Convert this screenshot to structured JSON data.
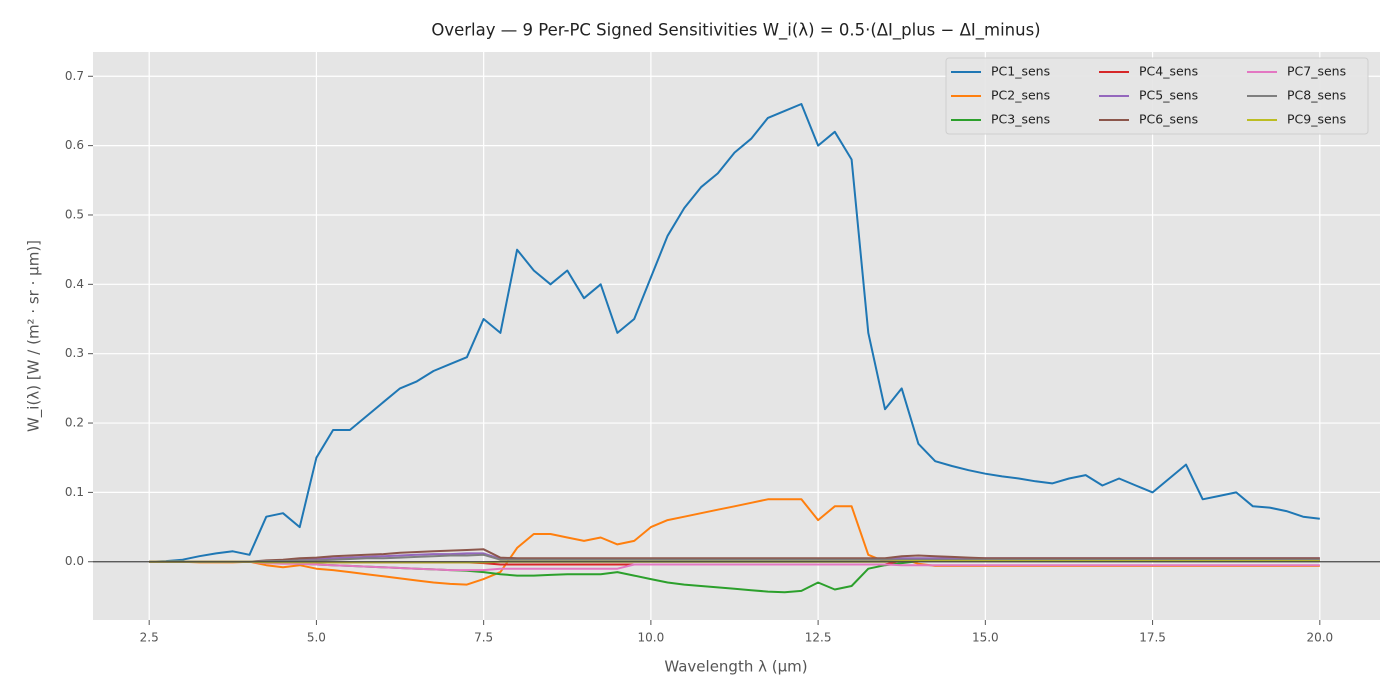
{
  "chart_data": {
    "type": "line",
    "title": "Overlay — 9 Per-PC Signed Sensitivities W_i(λ) = 0.5·(ΔI_plus − ΔI_minus)",
    "x_label": "Wavelength λ (µm)",
    "y_label": "W_i(λ) [W / (m² · sr · µm)]",
    "x": [
      2.5,
      2.75,
      3.0,
      3.25,
      3.5,
      3.75,
      4.0,
      4.25,
      4.5,
      4.75,
      5.0,
      5.25,
      5.5,
      5.75,
      6.0,
      6.25,
      6.5,
      6.75,
      7.0,
      7.25,
      7.5,
      7.75,
      8.0,
      8.25,
      8.5,
      8.75,
      9.0,
      9.25,
      9.5,
      9.75,
      10.0,
      10.25,
      10.5,
      10.75,
      11.0,
      11.25,
      11.5,
      11.75,
      12.0,
      12.25,
      12.5,
      12.75,
      13.0,
      13.25,
      13.5,
      13.75,
      14.0,
      14.25,
      14.5,
      14.75,
      15.0,
      15.25,
      15.5,
      15.75,
      16.0,
      16.25,
      16.5,
      16.75,
      17.0,
      17.25,
      17.5,
      17.75,
      18.0,
      18.25,
      18.5,
      18.75,
      19.0,
      19.25,
      19.5,
      19.75,
      20.0
    ],
    "series": [
      {
        "name": "PC1_sens",
        "color": "#1f77b4",
        "values": [
          0,
          0.001,
          0.003,
          0.008,
          0.012,
          0.015,
          0.01,
          0.065,
          0.07,
          0.05,
          0.15,
          0.19,
          0.19,
          0.21,
          0.23,
          0.25,
          0.26,
          0.275,
          0.285,
          0.295,
          0.35,
          0.33,
          0.45,
          0.42,
          0.4,
          0.42,
          0.38,
          0.4,
          0.33,
          0.35,
          0.41,
          0.47,
          0.51,
          0.54,
          0.56,
          0.59,
          0.61,
          0.64,
          0.65,
          0.66,
          0.6,
          0.62,
          0.58,
          0.33,
          0.22,
          0.25,
          0.17,
          0.145,
          0.138,
          0.132,
          0.127,
          0.123,
          0.12,
          0.116,
          0.113,
          0.12,
          0.125,
          0.11,
          0.12,
          0.11,
          0.1,
          0.12,
          0.14,
          0.09,
          0.095,
          0.1,
          0.08,
          0.078,
          0.073,
          0.065,
          0.062
        ]
      },
      {
        "name": "PC2_sens",
        "color": "#ff7f0e",
        "values": [
          0,
          0,
          0,
          -0.001,
          -0.001,
          -0.001,
          0,
          -0.005,
          -0.008,
          -0.005,
          -0.01,
          -0.012,
          -0.015,
          -0.018,
          -0.021,
          -0.024,
          -0.027,
          -0.03,
          -0.032,
          -0.033,
          -0.025,
          -0.015,
          0.02,
          0.04,
          0.04,
          0.035,
          0.03,
          0.035,
          0.025,
          0.03,
          0.05,
          0.06,
          0.065,
          0.07,
          0.075,
          0.08,
          0.085,
          0.09,
          0.09,
          0.09,
          0.06,
          0.08,
          0.08,
          0.01,
          0,
          0.005,
          -0.003,
          -0.006,
          -0.006,
          -0.006,
          -0.006,
          -0.006,
          -0.006,
          -0.006,
          -0.006,
          -0.006,
          -0.006,
          -0.006,
          -0.006,
          -0.006,
          -0.006,
          -0.006,
          -0.006,
          -0.006,
          -0.006,
          -0.006,
          -0.006,
          -0.006,
          -0.006,
          -0.006,
          -0.006
        ]
      },
      {
        "name": "PC3_sens",
        "color": "#2ca02c",
        "values": [
          0,
          0,
          0,
          0,
          0,
          0,
          0,
          -0.001,
          -0.002,
          -0.003,
          -0.004,
          -0.005,
          -0.006,
          -0.007,
          -0.008,
          -0.009,
          -0.01,
          -0.011,
          -0.012,
          -0.013,
          -0.015,
          -0.018,
          -0.02,
          -0.02,
          -0.019,
          -0.018,
          -0.018,
          -0.018,
          -0.015,
          -0.02,
          -0.025,
          -0.03,
          -0.033,
          -0.035,
          -0.037,
          -0.039,
          -0.041,
          -0.043,
          -0.044,
          -0.042,
          -0.03,
          -0.04,
          -0.035,
          -0.01,
          -0.005,
          -0.002,
          0.001,
          0.001,
          0.001,
          0.001,
          0.001,
          0.001,
          0.001,
          0.001,
          0.001,
          0.001,
          0.001,
          0.001,
          0.001,
          0.001,
          0.001,
          0.001,
          0.001,
          0.001,
          0.001,
          0.001,
          0.001,
          0.001,
          0.001,
          0.001,
          0.001
        ]
      },
      {
        "name": "PC4_sens",
        "color": "#d62728",
        "values": [
          0,
          0,
          0,
          0,
          0,
          0,
          0,
          -0.001,
          -0.001,
          -0.001,
          -0.001,
          -0.001,
          -0.001,
          -0.001,
          -0.001,
          -0.001,
          -0.001,
          -0.001,
          -0.001,
          -0.001,
          -0.002,
          -0.004,
          -0.004,
          -0.004,
          -0.004,
          -0.004,
          -0.004,
          -0.004,
          -0.004,
          -0.004,
          -0.004,
          -0.004,
          -0.004,
          -0.004,
          -0.004,
          -0.004,
          -0.004,
          -0.004,
          -0.004,
          -0.004,
          -0.004,
          -0.004,
          -0.004,
          -0.004,
          -0.004,
          0.002,
          0.002,
          0.002,
          0.002,
          0.002,
          0.002,
          0.002,
          0.002,
          0.002,
          0.002,
          0.002,
          0.002,
          0.002,
          0.002,
          0.002,
          0.002,
          0.002,
          0.002,
          0.002,
          0.002,
          0.002,
          0.002,
          0.002,
          0.002,
          0.002,
          0.002
        ]
      },
      {
        "name": "PC5_sens",
        "color": "#9467bd",
        "values": [
          0,
          0,
          0,
          0,
          0,
          0,
          0,
          0.001,
          0.002,
          0.003,
          0.004,
          0.005,
          0.006,
          0.007,
          0.008,
          0.009,
          0.01,
          0.011,
          0.011,
          0.012,
          0.012,
          0.004,
          0.004,
          0.004,
          0.004,
          0.004,
          0.004,
          0.004,
          0.004,
          0.004,
          0.004,
          0.004,
          0.004,
          0.004,
          0.004,
          0.004,
          0.004,
          0.004,
          0.004,
          0.004,
          0.004,
          0.004,
          0.004,
          0.004,
          0.004,
          0.005,
          0.005,
          0.005,
          0.005,
          0.005,
          0.005,
          0.005,
          0.005,
          0.005,
          0.005,
          0.005,
          0.005,
          0.005,
          0.005,
          0.005,
          0.005,
          0.005,
          0.005,
          0.005,
          0.005,
          0.005,
          0.005,
          0.005,
          0.005,
          0.005,
          0.005
        ]
      },
      {
        "name": "PC6_sens",
        "color": "#8c564b",
        "values": [
          0,
          0,
          0,
          0,
          0,
          0,
          0,
          0.002,
          0.003,
          0.005,
          0.006,
          0.008,
          0.009,
          0.01,
          0.011,
          0.013,
          0.014,
          0.015,
          0.016,
          0.017,
          0.018,
          0.006,
          0.005,
          0.005,
          0.005,
          0.005,
          0.005,
          0.005,
          0.005,
          0.005,
          0.005,
          0.005,
          0.005,
          0.005,
          0.005,
          0.005,
          0.005,
          0.005,
          0.005,
          0.005,
          0.005,
          0.005,
          0.005,
          0.005,
          0.005,
          0.008,
          0.009,
          0.008,
          0.007,
          0.006,
          0.005,
          0.005,
          0.005,
          0.005,
          0.005,
          0.005,
          0.005,
          0.005,
          0.005,
          0.005,
          0.005,
          0.005,
          0.005,
          0.005,
          0.005,
          0.005,
          0.005,
          0.005,
          0.005,
          0.005,
          0.005
        ]
      },
      {
        "name": "PC7_sens",
        "color": "#e377c2",
        "values": [
          0,
          0,
          0,
          0,
          0,
          0,
          0,
          -0.002,
          -0.003,
          -0.003,
          -0.004,
          -0.005,
          -0.006,
          -0.007,
          -0.008,
          -0.009,
          -0.01,
          -0.011,
          -0.012,
          -0.012,
          -0.012,
          -0.01,
          -0.01,
          -0.01,
          -0.01,
          -0.01,
          -0.01,
          -0.01,
          -0.01,
          -0.004,
          -0.004,
          -0.004,
          -0.004,
          -0.004,
          -0.004,
          -0.004,
          -0.004,
          -0.004,
          -0.004,
          -0.004,
          -0.004,
          -0.004,
          -0.004,
          -0.004,
          -0.004,
          -0.005,
          -0.005,
          -0.005,
          -0.005,
          -0.005,
          -0.005,
          -0.005,
          -0.005,
          -0.005,
          -0.005,
          -0.005,
          -0.005,
          -0.005,
          -0.005,
          -0.005,
          -0.005,
          -0.005,
          -0.005,
          -0.005,
          -0.005,
          -0.005,
          -0.005,
          -0.005,
          -0.005,
          -0.005,
          -0.005
        ]
      },
      {
        "name": "PC8_sens",
        "color": "#7f7f7f",
        "values": [
          0,
          0,
          0,
          0,
          0,
          0,
          0,
          0.001,
          0.001,
          0.002,
          0.002,
          0.003,
          0.004,
          0.005,
          0.005,
          0.006,
          0.007,
          0.008,
          0.009,
          0.009,
          0.01,
          0.003,
          0.003,
          0.003,
          0.003,
          0.003,
          0.003,
          0.003,
          0.003,
          0.003,
          0.003,
          0.003,
          0.003,
          0.003,
          0.003,
          0.003,
          0.003,
          0.003,
          0.003,
          0.003,
          0.003,
          0.003,
          0.003,
          0.003,
          0.003,
          0.003,
          0.003,
          0.003,
          0.003,
          0.003,
          0.003,
          0.003,
          0.003,
          0.003,
          0.003,
          0.003,
          0.003,
          0.003,
          0.003,
          0.003,
          0.003,
          0.003,
          0.003,
          0.003,
          0.003,
          0.003,
          0.003,
          0.003,
          0.003,
          0.003,
          0.003
        ]
      },
      {
        "name": "PC9_sens",
        "color": "#bcbd22",
        "values": [
          0,
          0,
          0,
          0,
          0,
          0,
          0,
          -0.001,
          -0.001,
          -0.001,
          -0.001,
          -0.001,
          -0.001,
          -0.001,
          -0.001,
          -0.001,
          -0.001,
          -0.001,
          -0.001,
          -0.001,
          -0.001,
          0,
          0,
          0,
          0,
          0,
          0,
          0,
          0,
          0,
          0,
          0,
          0,
          0,
          0,
          0,
          0,
          0,
          0,
          0,
          0,
          0,
          0,
          0,
          0,
          0.001,
          0.001,
          0.001,
          0.001,
          0.001,
          0.001,
          0.001,
          0.001,
          0.001,
          0.001,
          0.001,
          0.001,
          0.001,
          0.001,
          0.001,
          0.001,
          0.001,
          0.001,
          0.001,
          0.001,
          0.001,
          0.001,
          0.001,
          0.001,
          0.001,
          0.001
        ]
      }
    ],
    "xlim": [
      1.66,
      20.9
    ],
    "ylim": [
      -0.084,
      0.735
    ],
    "xticks": [
      2.5,
      {
        "value": 5,
        "label": "5.0"
      },
      7.5,
      {
        "value": 10,
        "label": "10.0"
      },
      12.5,
      {
        "value": 15,
        "label": "15.0"
      },
      17.5,
      {
        "value": 20,
        "label": "20.0"
      }
    ],
    "yticks": [
      {
        "value": 0,
        "label": "0.0"
      },
      0.1,
      0.2,
      0.3,
      0.4,
      0.5,
      0.6,
      0.7
    ],
    "grid": true,
    "legend": "upper right",
    "legend_columns": 3
  }
}
